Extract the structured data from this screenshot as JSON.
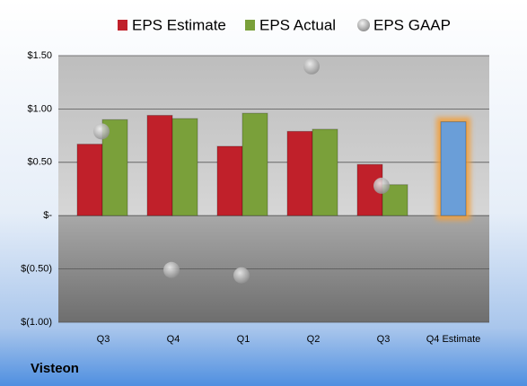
{
  "chart_data": {
    "type": "bar",
    "categories": [
      "Q3",
      "Q4",
      "Q1",
      "Q2",
      "Q3",
      "Q4 Estimate"
    ],
    "series": [
      {
        "name": "EPS Estimate",
        "color": "#c0202a",
        "values": [
          0.67,
          0.94,
          0.65,
          0.79,
          0.48,
          0.88
        ]
      },
      {
        "name": "EPS Actual",
        "color": "#7aa03a",
        "values": [
          0.9,
          0.91,
          0.96,
          0.81,
          0.29,
          null
        ]
      },
      {
        "name": "EPS GAAP",
        "color": "#a8a8a8",
        "type": "scatter",
        "values": [
          0.79,
          -0.51,
          -0.56,
          1.4,
          0.28,
          null
        ]
      }
    ],
    "estimate_color": "#6a9ed8",
    "ylim": [
      -1.0,
      1.5
    ],
    "yticks": [
      {
        "value": -1.0,
        "label": "$(1.00)"
      },
      {
        "value": -0.5,
        "label": "$(0.50)"
      },
      {
        "value": 0,
        "label": "$-"
      },
      {
        "value": 0.5,
        "label": "$0.50"
      },
      {
        "value": 1.0,
        "label": "$1.00"
      },
      {
        "value": 1.5,
        "label": "$1.50"
      }
    ],
    "grid": true,
    "legend": "top",
    "footer": "Visteon"
  }
}
